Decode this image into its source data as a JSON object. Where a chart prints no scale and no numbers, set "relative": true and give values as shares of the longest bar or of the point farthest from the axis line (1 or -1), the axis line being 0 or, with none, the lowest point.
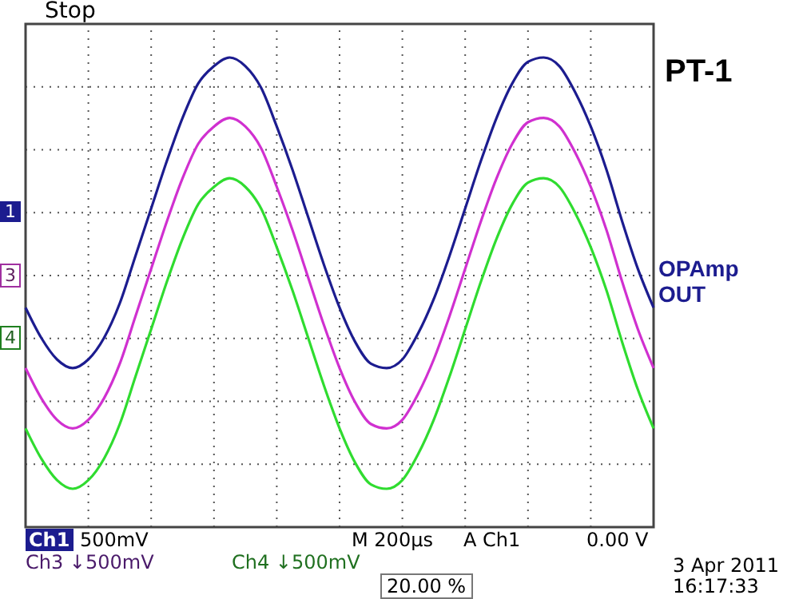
{
  "chart_data": {
    "type": "line",
    "title": "PT-1",
    "subtitle": "OPAmp OUT",
    "relative": true,
    "grid": true,
    "categories": [
      null,
      null,
      null,
      null,
      null,
      null,
      null,
      null,
      null,
      null,
      null,
      null,
      null,
      null,
      null,
      null,
      null,
      null,
      null,
      null,
      null,
      null,
      null,
      null,
      null,
      null,
      null,
      null,
      null,
      null,
      null,
      null,
      null,
      null,
      null,
      null,
      null,
      null,
      null,
      null,
      null
    ],
    "series": [
      {
        "color": "#1c1c8f",
        "values": [
          0.42,
          0.35,
          0.3,
          0.28,
          0.3,
          0.35,
          0.43,
          0.54,
          0.65,
          0.76,
          0.86,
          0.94,
          0.98,
          1.0,
          0.98,
          0.93,
          0.84,
          0.74,
          0.63,
          0.52,
          0.42,
          0.34,
          0.29,
          0.28,
          0.3,
          0.36,
          0.44,
          0.54,
          0.65,
          0.76,
          0.86,
          0.94,
          0.99,
          1.0,
          0.98,
          0.92,
          0.84,
          0.74,
          0.62,
          0.51,
          0.42
        ]
      },
      {
        "color": "#d030d0",
        "values": [
          0.28,
          0.21,
          0.16,
          0.14,
          0.16,
          0.21,
          0.29,
          0.4,
          0.51,
          0.62,
          0.72,
          0.8,
          0.84,
          0.86,
          0.84,
          0.79,
          0.7,
          0.6,
          0.49,
          0.38,
          0.28,
          0.2,
          0.15,
          0.14,
          0.16,
          0.22,
          0.3,
          0.4,
          0.51,
          0.62,
          0.72,
          0.8,
          0.85,
          0.86,
          0.84,
          0.78,
          0.7,
          0.6,
          0.48,
          0.37,
          0.28
        ]
      },
      {
        "color": "#2fdc2f",
        "values": [
          0.14,
          0.07,
          0.02,
          0,
          0.02,
          0.07,
          0.15,
          0.26,
          0.37,
          0.48,
          0.58,
          0.66,
          0.7,
          0.72,
          0.7,
          0.65,
          0.56,
          0.46,
          0.35,
          0.24,
          0.14,
          0.06,
          0.01,
          0,
          0.02,
          0.08,
          0.16,
          0.26,
          0.37,
          0.48,
          0.58,
          0.66,
          0.71,
          0.72,
          0.7,
          0.64,
          0.56,
          0.46,
          0.34,
          0.23,
          0.14
        ]
      }
    ],
    "annotations": [
      "Stop",
      "1",
      "3",
      "4",
      "Ch1",
      "500mV",
      "M 200µs",
      "A Ch1",
      "0.00 V",
      "Ch3 ↓500mV",
      "Ch4 ↓500mV",
      "20.00 %",
      "3 Apr 2011",
      "16:17:33"
    ]
  }
}
